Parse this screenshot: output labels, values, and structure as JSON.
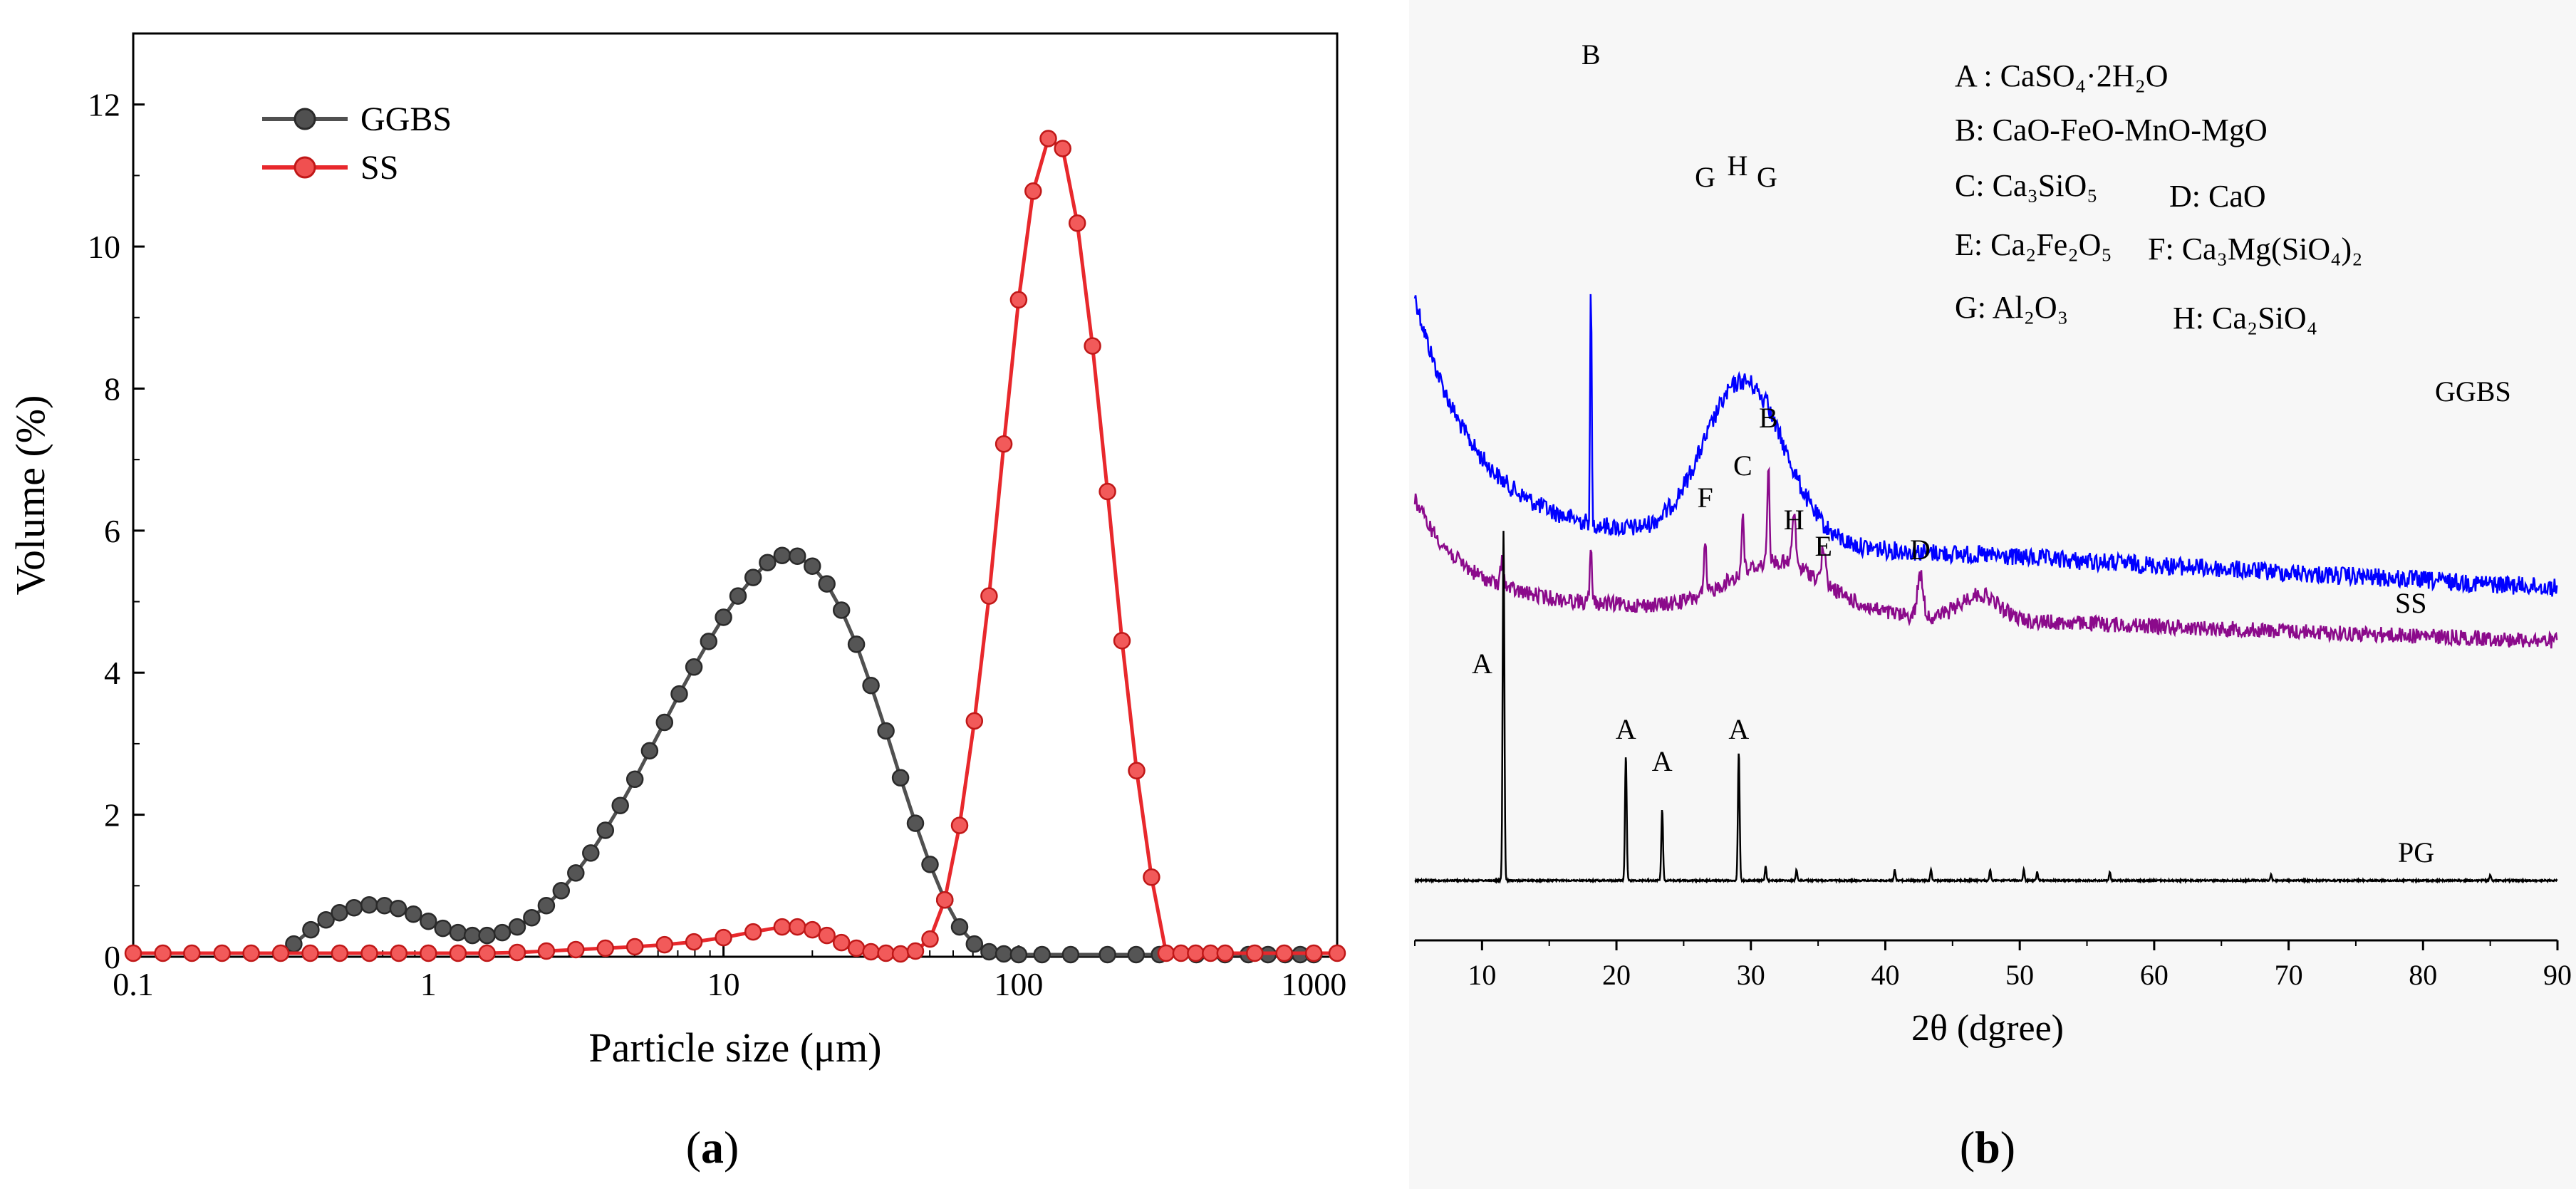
{
  "colors": {
    "ggbs_psd": "#505050",
    "ss_psd": "#e8282c",
    "ggbs_xrd": "#0000ff",
    "ss_xrd": "#8b0a8b",
    "pg_xrd": "#000000"
  },
  "panel_a": {
    "caption": "(a)",
    "caption_letter": "a",
    "legend": {
      "ggbs": "GGBS",
      "ss": "SS"
    }
  },
  "panel_b": {
    "caption": "(b)",
    "caption_letter": "b"
  },
  "chart_data": [
    {
      "type": "line",
      "title": "",
      "xlabel": "Particle size (μm)",
      "ylabel": "Volume (%)",
      "xscale": "log",
      "xlim": [
        0.1,
        1200
      ],
      "ylim": [
        0,
        13
      ],
      "xticks": [
        {
          "v": 0.1,
          "label": "0.1"
        },
        {
          "v": 1,
          "label": "1"
        },
        {
          "v": 10,
          "label": "10"
        },
        {
          "v": 100,
          "label": "100"
        },
        {
          "v": 1000,
          "label": "1000"
        }
      ],
      "yticks": [
        0,
        2,
        4,
        6,
        8,
        10,
        12
      ],
      "legend_position": "top-left",
      "series": [
        {
          "name": "GGBS",
          "color": "#505050",
          "points": [
            [
              0.35,
              0.18
            ],
            [
              0.4,
              0.38
            ],
            [
              0.45,
              0.52
            ],
            [
              0.5,
              0.62
            ],
            [
              0.56,
              0.69
            ],
            [
              0.63,
              0.73
            ],
            [
              0.71,
              0.72
            ],
            [
              0.79,
              0.68
            ],
            [
              0.89,
              0.6
            ],
            [
              1.0,
              0.5
            ],
            [
              1.12,
              0.4
            ],
            [
              1.26,
              0.34
            ],
            [
              1.41,
              0.3
            ],
            [
              1.58,
              0.3
            ],
            [
              1.78,
              0.34
            ],
            [
              2.0,
              0.42
            ],
            [
              2.24,
              0.55
            ],
            [
              2.51,
              0.72
            ],
            [
              2.82,
              0.93
            ],
            [
              3.16,
              1.18
            ],
            [
              3.55,
              1.46
            ],
            [
              3.98,
              1.78
            ],
            [
              4.47,
              2.13
            ],
            [
              5.01,
              2.5
            ],
            [
              5.62,
              2.9
            ],
            [
              6.31,
              3.3
            ],
            [
              7.08,
              3.7
            ],
            [
              7.94,
              4.08
            ],
            [
              8.91,
              4.44
            ],
            [
              10.0,
              4.78
            ],
            [
              11.2,
              5.08
            ],
            [
              12.6,
              5.34
            ],
            [
              14.1,
              5.55
            ],
            [
              15.8,
              5.65
            ],
            [
              17.8,
              5.64
            ],
            [
              20.0,
              5.5
            ],
            [
              22.4,
              5.25
            ],
            [
              25.1,
              4.88
            ],
            [
              28.2,
              4.4
            ],
            [
              31.6,
              3.82
            ],
            [
              35.5,
              3.18
            ],
            [
              39.8,
              2.52
            ],
            [
              44.7,
              1.88
            ],
            [
              50.1,
              1.3
            ],
            [
              56.2,
              0.8
            ],
            [
              63.1,
              0.42
            ],
            [
              70.8,
              0.18
            ],
            [
              79.4,
              0.07
            ],
            [
              89.1,
              0.04
            ],
            [
              100,
              0.03
            ],
            [
              120,
              0.03
            ],
            [
              150,
              0.03
            ],
            [
              200,
              0.03
            ],
            [
              250,
              0.03
            ],
            [
              300,
              0.03
            ],
            [
              400,
              0.03
            ],
            [
              500,
              0.03
            ],
            [
              600,
              0.03
            ],
            [
              700,
              0.03
            ],
            [
              800,
              0.03
            ],
            [
              900,
              0.03
            ],
            [
              1000,
              0.03
            ]
          ]
        },
        {
          "name": "SS",
          "color": "#e8282c",
          "points": [
            [
              0.1,
              0.05
            ],
            [
              0.126,
              0.05
            ],
            [
              0.158,
              0.05
            ],
            [
              0.2,
              0.05
            ],
            [
              0.251,
              0.05
            ],
            [
              0.316,
              0.05
            ],
            [
              0.398,
              0.05
            ],
            [
              0.501,
              0.05
            ],
            [
              0.631,
              0.05
            ],
            [
              0.794,
              0.05
            ],
            [
              1.0,
              0.05
            ],
            [
              1.26,
              0.05
            ],
            [
              1.58,
              0.05
            ],
            [
              2.0,
              0.06
            ],
            [
              2.51,
              0.08
            ],
            [
              3.16,
              0.1
            ],
            [
              3.98,
              0.12
            ],
            [
              5.01,
              0.14
            ],
            [
              6.31,
              0.17
            ],
            [
              7.94,
              0.21
            ],
            [
              10.0,
              0.27
            ],
            [
              12.6,
              0.35
            ],
            [
              15.8,
              0.42
            ],
            [
              17.8,
              0.42
            ],
            [
              20.0,
              0.38
            ],
            [
              22.4,
              0.3
            ],
            [
              25.1,
              0.2
            ],
            [
              28.2,
              0.12
            ],
            [
              31.6,
              0.07
            ],
            [
              35.5,
              0.05
            ],
            [
              39.8,
              0.04
            ],
            [
              44.7,
              0.08
            ],
            [
              50.1,
              0.25
            ],
            [
              56.2,
              0.8
            ],
            [
              63.1,
              1.85
            ],
            [
              70.8,
              3.32
            ],
            [
              79.4,
              5.08
            ],
            [
              89.1,
              7.22
            ],
            [
              100,
              9.25
            ],
            [
              112,
              10.78
            ],
            [
              126,
              11.52
            ],
            [
              141,
              11.38
            ],
            [
              158,
              10.33
            ],
            [
              178,
              8.6
            ],
            [
              200,
              6.55
            ],
            [
              224,
              4.45
            ],
            [
              251,
              2.62
            ],
            [
              282,
              1.12
            ],
            [
              316,
              0.05
            ],
            [
              355,
              0.05
            ],
            [
              398,
              0.05
            ],
            [
              447,
              0.05
            ],
            [
              501,
              0.05
            ],
            [
              631,
              0.05
            ],
            [
              794,
              0.05
            ],
            [
              1000,
              0.05
            ],
            [
              1200,
              0.05
            ]
          ]
        }
      ]
    },
    {
      "type": "line",
      "title": "",
      "xlabel": "2θ (dgree)",
      "ylabel": "",
      "xlim": [
        5,
        90
      ],
      "xticks": [
        10,
        20,
        30,
        40,
        50,
        60,
        70,
        80,
        90
      ],
      "yticks_shown": false,
      "series": [
        {
          "name": "GGBS",
          "color": "#0000ff",
          "label": "GGBS"
        },
        {
          "name": "SS",
          "color": "#8b0a8b",
          "label": "SS"
        },
        {
          "name": "PG",
          "color": "#000000",
          "label": "PG"
        }
      ],
      "peak_labels": [
        {
          "text": "B",
          "angle": 18.1,
          "series": "GGBS"
        },
        {
          "text": "G",
          "angle": 26.6,
          "series": "GGBS"
        },
        {
          "text": "H",
          "angle": 29.0,
          "series": "GGBS"
        },
        {
          "text": "G",
          "angle": 31.2,
          "series": "GGBS"
        },
        {
          "text": "F",
          "angle": 26.6,
          "series": "SS"
        },
        {
          "text": "C",
          "angle": 29.4,
          "series": "SS"
        },
        {
          "text": "B",
          "angle": 31.3,
          "series": "SS"
        },
        {
          "text": "H",
          "angle": 33.2,
          "series": "SS"
        },
        {
          "text": "E",
          "angle": 35.4,
          "series": "SS"
        },
        {
          "text": "D",
          "angle": 42.6,
          "series": "SS"
        },
        {
          "text": "A",
          "angle": 10.0,
          "series": "PG"
        },
        {
          "text": "A",
          "angle": 20.7,
          "series": "PG"
        },
        {
          "text": "A",
          "angle": 23.4,
          "series": "PG"
        },
        {
          "text": "A",
          "angle": 29.1,
          "series": "PG"
        }
      ],
      "phase_legend": [
        "A : CaSO₄·2H₂O",
        "B: CaO-FeO-MnO-MgO",
        "C: Ca₃SiO₅",
        "D: CaO",
        "E: Ca₂Fe₂O₅",
        "F: Ca₃Mg(SiO₄)₂",
        "G: Al₂O₃",
        "H: Ca₂SiO₄"
      ]
    }
  ]
}
